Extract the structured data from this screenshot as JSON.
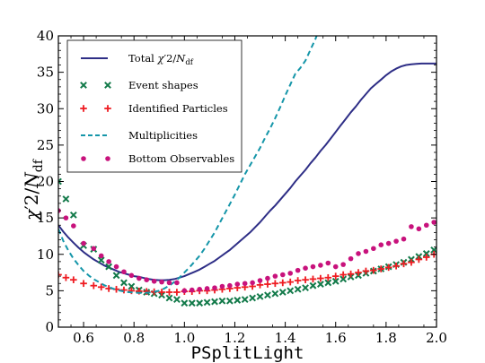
{
  "chart_data": {
    "type": "line",
    "xlabel": "PSplitLight",
    "ylabel_parts": {
      "chi": "χ",
      "prime": "′2",
      "slash": "/",
      "n": "N",
      "sub": "df"
    },
    "xlim": [
      0.5,
      2.0
    ],
    "ylim": [
      0,
      40
    ],
    "xticks": [
      "0.6",
      "0.8",
      "1.0",
      "1.2",
      "1.4",
      "1.6",
      "1.8",
      "2.0"
    ],
    "xtick_values": [
      0.6,
      0.8,
      1.0,
      1.2,
      1.4,
      1.6,
      1.8,
      2.0
    ],
    "yticks": [
      "0",
      "5",
      "10",
      "15",
      "20",
      "25",
      "30",
      "35",
      "40"
    ],
    "ytick_values": [
      0,
      5,
      10,
      15,
      20,
      25,
      30,
      35,
      40
    ],
    "grid": false,
    "legend_position": "top-left",
    "series": [
      {
        "name": "Total χ′2/Ndf",
        "legend_label": {
          "text": "Total ",
          "chi": "χ",
          "prime": "′2",
          "slash": "/",
          "n": "N",
          "sub": "df"
        },
        "style": "line",
        "color": "#2e2e86",
        "x": [
          0.5,
          0.52,
          0.54,
          0.56,
          0.58,
          0.6,
          0.62,
          0.64,
          0.66,
          0.68,
          0.7,
          0.72,
          0.74,
          0.76,
          0.78,
          0.8,
          0.82,
          0.84,
          0.86,
          0.88,
          0.9,
          0.92,
          0.94,
          0.96,
          0.98,
          1.0,
          1.02,
          1.04,
          1.06,
          1.08,
          1.1,
          1.12,
          1.14,
          1.16,
          1.18,
          1.2,
          1.22,
          1.24,
          1.26,
          1.28,
          1.3,
          1.32,
          1.34,
          1.36,
          1.38,
          1.4,
          1.42,
          1.44,
          1.46,
          1.48,
          1.5,
          1.52,
          1.54,
          1.56,
          1.58,
          1.6,
          1.62,
          1.64,
          1.66,
          1.68,
          1.7,
          1.72,
          1.74,
          1.76,
          1.78,
          1.8,
          1.82,
          1.84,
          1.86,
          1.88,
          1.9,
          1.92,
          1.94,
          1.96,
          1.98,
          2.0
        ],
        "y": [
          14,
          13.1,
          12.3,
          11.6,
          10.9,
          10.3,
          9.8,
          9.3,
          8.9,
          8.5,
          8.2,
          7.9,
          7.6,
          7.4,
          7.2,
          7,
          6.9,
          6.75,
          6.6,
          6.5,
          6.45,
          6.45,
          6.5,
          6.6,
          6.8,
          7,
          7.3,
          7.6,
          7.9,
          8.3,
          8.7,
          9.1,
          9.6,
          10.1,
          10.6,
          11.2,
          11.8,
          12.4,
          13,
          13.7,
          14.4,
          15.2,
          16,
          16.7,
          17.5,
          18.3,
          19.1,
          20,
          20.8,
          21.6,
          22.5,
          23.3,
          24.2,
          25,
          25.9,
          26.8,
          27.7,
          28.6,
          29.5,
          30.3,
          31.2,
          32,
          32.8,
          33.4,
          34,
          34.6,
          35.1,
          35.5,
          35.8,
          36,
          36.1,
          36.15,
          36.2,
          36.2,
          36.2,
          36.2
        ]
      },
      {
        "name": "Event shapes",
        "style": "x-marker",
        "color": "#137a4a",
        "x": [
          0.5,
          0.53,
          0.56,
          0.6,
          0.64,
          0.67,
          0.7,
          0.73,
          0.76,
          0.79,
          0.82,
          0.85,
          0.88,
          0.91,
          0.94,
          0.97,
          1.0,
          1.03,
          1.06,
          1.09,
          1.12,
          1.15,
          1.18,
          1.21,
          1.24,
          1.27,
          1.3,
          1.33,
          1.36,
          1.39,
          1.42,
          1.45,
          1.48,
          1.51,
          1.54,
          1.57,
          1.6,
          1.63,
          1.66,
          1.69,
          1.72,
          1.75,
          1.78,
          1.81,
          1.84,
          1.87,
          1.9,
          1.93,
          1.96,
          1.99
        ],
        "y": [
          20,
          17.6,
          15.4,
          11.2,
          10.7,
          9.2,
          8.3,
          7.1,
          6.1,
          5.6,
          5.1,
          4.8,
          4.6,
          4.4,
          4,
          3.8,
          3.3,
          3.3,
          3.3,
          3.4,
          3.5,
          3.6,
          3.6,
          3.7,
          3.8,
          4,
          4.2,
          4.4,
          4.6,
          4.8,
          5,
          5.2,
          5.4,
          5.7,
          5.9,
          6.1,
          6.3,
          6.6,
          6.9,
          7.1,
          7.4,
          7.7,
          8,
          8.3,
          8.6,
          8.9,
          9.3,
          9.7,
          10.1,
          10.6
        ]
      },
      {
        "name": "Identified Particles",
        "style": "plus-marker",
        "color": "#ef1c22",
        "x": [
          0.5,
          0.53,
          0.56,
          0.6,
          0.64,
          0.67,
          0.7,
          0.73,
          0.76,
          0.79,
          0.82,
          0.85,
          0.88,
          0.91,
          0.94,
          0.97,
          1.0,
          1.03,
          1.06,
          1.09,
          1.12,
          1.15,
          1.18,
          1.21,
          1.24,
          1.27,
          1.3,
          1.33,
          1.36,
          1.39,
          1.42,
          1.45,
          1.48,
          1.51,
          1.54,
          1.57,
          1.6,
          1.63,
          1.66,
          1.69,
          1.72,
          1.75,
          1.78,
          1.81,
          1.84,
          1.87,
          1.9,
          1.93,
          1.96,
          1.99
        ],
        "y": [
          7.2,
          6.8,
          6.5,
          6,
          5.7,
          5.5,
          5.3,
          5.2,
          5.1,
          5,
          4.95,
          4.9,
          4.85,
          4.8,
          4.8,
          4.8,
          4.9,
          4.9,
          5,
          5,
          5.1,
          5.2,
          5.3,
          5.4,
          5.5,
          5.6,
          5.8,
          5.9,
          6,
          6.1,
          6.2,
          6.4,
          6.5,
          6.6,
          6.7,
          6.8,
          7,
          7.2,
          7.3,
          7.5,
          7.7,
          7.8,
          8,
          8.2,
          8.4,
          8.7,
          8.9,
          9.3,
          9.6,
          10
        ]
      },
      {
        "name": "Multiplicities",
        "style": "dashed-line",
        "color": "#1596a9",
        "x": [
          0.5,
          0.52,
          0.54,
          0.56,
          0.58,
          0.6,
          0.62,
          0.64,
          0.66,
          0.68,
          0.7,
          0.72,
          0.74,
          0.76,
          0.78,
          0.8,
          0.82,
          0.84,
          0.86,
          0.88,
          0.9,
          0.92,
          0.94,
          0.96,
          0.98,
          1.0,
          1.02,
          1.04,
          1.06,
          1.08,
          1.1,
          1.12,
          1.14,
          1.16,
          1.18,
          1.2,
          1.22,
          1.24,
          1.26,
          1.28,
          1.3,
          1.32,
          1.34,
          1.36,
          1.38,
          1.4,
          1.42,
          1.44,
          1.46,
          1.48,
          1.5,
          1.52,
          1.53
        ],
        "y": [
          13.5,
          11.8,
          10.5,
          9.4,
          8.5,
          7.7,
          7.1,
          6.6,
          6.2,
          5.8,
          5.5,
          5.25,
          5.05,
          4.9,
          4.8,
          4.75,
          4.7,
          4.7,
          4.75,
          4.85,
          5,
          5.3,
          5.7,
          6.2,
          6.8,
          7.5,
          8.2,
          9,
          9.8,
          10.8,
          11.9,
          13,
          14.3,
          15.6,
          16.9,
          18.2,
          19.6,
          21,
          22.2,
          23.4,
          24.6,
          26,
          27.3,
          28.7,
          30.2,
          31.8,
          33.3,
          34.8,
          35.6,
          36.6,
          38.1,
          39.6,
          40.5
        ]
      },
      {
        "name": "Bottom Observables",
        "style": "dot-marker",
        "color": "#c8127c",
        "x": [
          0.5,
          0.53,
          0.56,
          0.6,
          0.64,
          0.67,
          0.7,
          0.73,
          0.76,
          0.79,
          0.82,
          0.85,
          0.88,
          0.91,
          0.94,
          0.97,
          1.0,
          1.03,
          1.06,
          1.09,
          1.12,
          1.15,
          1.18,
          1.21,
          1.24,
          1.27,
          1.3,
          1.33,
          1.36,
          1.39,
          1.42,
          1.45,
          1.48,
          1.51,
          1.54,
          1.57,
          1.6,
          1.63,
          1.66,
          1.69,
          1.72,
          1.75,
          1.78,
          1.81,
          1.84,
          1.87,
          1.9,
          1.93,
          1.96,
          1.99
        ],
        "y": [
          16,
          15,
          13.9,
          11.5,
          10.8,
          9.8,
          9,
          8.3,
          7.6,
          7.1,
          6.7,
          6.5,
          6.3,
          6.2,
          6.1,
          6.1,
          5,
          5.1,
          5.2,
          5.3,
          5.4,
          5.6,
          5.7,
          5.9,
          6,
          6.1,
          6.4,
          6.7,
          7,
          7.2,
          7.4,
          7.8,
          8.1,
          8.3,
          8.5,
          8.8,
          8.3,
          8.6,
          9.4,
          10.1,
          10.4,
          10.8,
          11.3,
          11.5,
          11.8,
          12.1,
          13.8,
          13.5,
          14,
          14.4
        ]
      }
    ]
  }
}
